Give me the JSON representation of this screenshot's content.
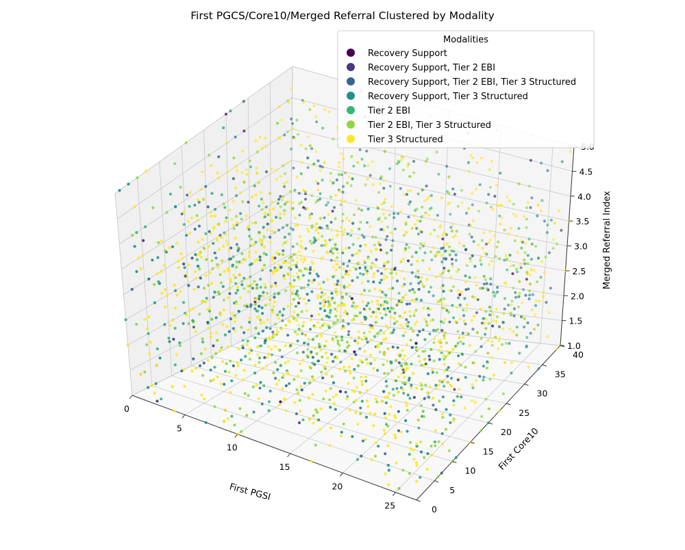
{
  "chart_data": {
    "type": "scatter",
    "projection": "3d",
    "title": "First PGCS/Core10/Merged Referral Clustered by Modality",
    "xlabel": "First PGSI",
    "ylabel": "First Core10",
    "zlabel": "Merged Referral Index",
    "xlim": [
      0,
      27
    ],
    "ylim": [
      0,
      40
    ],
    "zlim": [
      1.0,
      5.0
    ],
    "xticks": [
      "0",
      "5",
      "10",
      "15",
      "20",
      "25"
    ],
    "yticks": [
      "0",
      "5",
      "10",
      "15",
      "20",
      "25",
      "30",
      "35",
      "40"
    ],
    "zticks": [
      "1.0",
      "1.5",
      "2.0",
      "2.5",
      "3.0",
      "3.5",
      "4.0",
      "4.5",
      "5.0"
    ],
    "grid": true,
    "legend": {
      "title": "Modalities",
      "position": "top-right"
    },
    "series": [
      {
        "name": "Recovery Support",
        "color": "#440154"
      },
      {
        "name": "Recovery Support, Tier 2 EBI",
        "color": "#443983"
      },
      {
        "name": "Recovery Support, Tier 2 EBI, Tier 3 Structured",
        "color": "#31688e"
      },
      {
        "name": "Recovery Support, Tier 3 Structured",
        "color": "#21918c"
      },
      {
        "name": "Tier 2 EBI",
        "color": "#35b779"
      },
      {
        "name": "Tier 2 EBI, Tier 3 Structured",
        "color": "#90d743"
      },
      {
        "name": "Tier 3 Structured",
        "color": "#fde725"
      }
    ],
    "points": {
      "x_range": [
        0,
        27
      ],
      "y_range": [
        0,
        40
      ],
      "z_values": [
        1.0,
        1.5,
        2.0,
        2.5,
        3.0,
        3.5,
        4.0,
        4.5,
        5.0
      ],
      "series_weights": [
        0.01,
        0.015,
        0.09,
        0.14,
        0.11,
        0.2,
        0.435
      ]
    }
  }
}
